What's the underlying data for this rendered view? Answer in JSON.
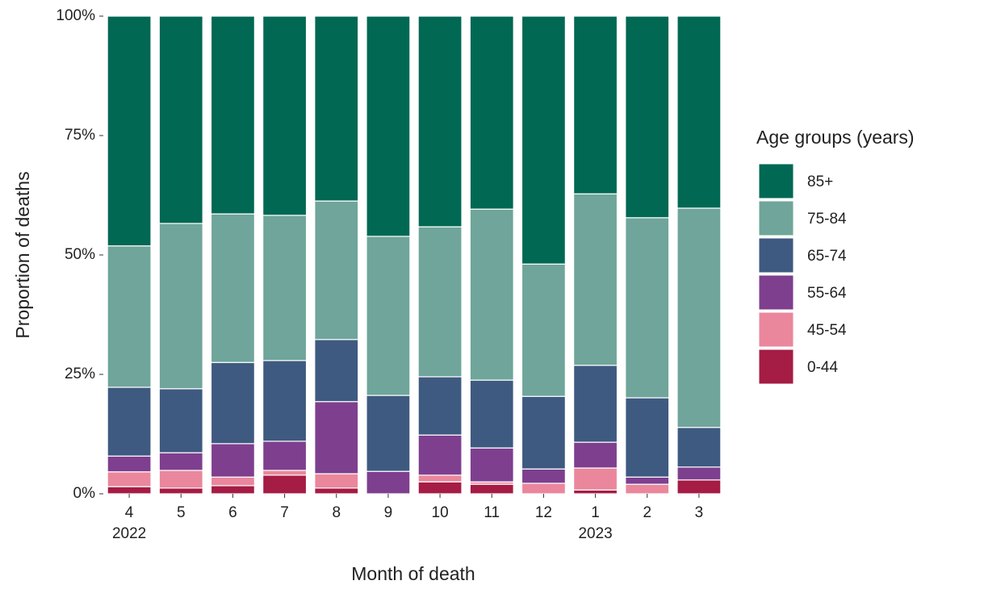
{
  "chart_data": {
    "type": "stacked_bar",
    "x_label": "Month of death",
    "y_label": "Proportion of deaths",
    "legend_title": "Age groups (years)",
    "legend_position": "right",
    "categories": [
      "4",
      "5",
      "6",
      "7",
      "8",
      "9",
      "10",
      "11",
      "12",
      "1",
      "2",
      "3"
    ],
    "years": [
      "2022",
      null,
      null,
      null,
      null,
      null,
      null,
      null,
      null,
      "2023",
      null,
      null
    ],
    "ylim": [
      0,
      100
    ],
    "yticks": [
      {
        "value": 0,
        "label": "0%"
      },
      {
        "value": 25,
        "label": "25%"
      },
      {
        "value": 50,
        "label": "50%"
      },
      {
        "value": 75,
        "label": "75%"
      },
      {
        "value": 100,
        "label": "100%"
      }
    ],
    "series": [
      {
        "name": "0-44",
        "color": "#a51c45",
        "values": [
          1.5,
          1.2,
          1.7,
          3.9,
          1.2,
          0,
          2.5,
          2.0,
          0,
          0.8,
          0,
          2.9
        ]
      },
      {
        "name": "45-54",
        "color": "#ea879c",
        "values": [
          3.1,
          3.7,
          1.8,
          1.0,
          3.0,
          0,
          1.4,
          0.5,
          2.2,
          4.6,
          2.0,
          0
        ]
      },
      {
        "name": "55-64",
        "color": "#7e3f8f",
        "values": [
          3.3,
          3.7,
          7.0,
          6.1,
          15.1,
          4.7,
          8.4,
          7.1,
          3.0,
          5.4,
          1.5,
          2.7
        ]
      },
      {
        "name": "65-74",
        "color": "#3e5a80",
        "values": [
          14.4,
          13.4,
          17.0,
          16.9,
          13.0,
          15.9,
          12.2,
          14.2,
          15.2,
          16.1,
          16.6,
          8.3
        ]
      },
      {
        "name": "75-84",
        "color": "#6fa59a",
        "values": [
          29.6,
          34.6,
          31.1,
          30.4,
          29.0,
          33.3,
          31.4,
          35.8,
          27.7,
          35.9,
          37.7,
          45.9
        ]
      },
      {
        "name": "85+",
        "color": "#006853",
        "values": [
          48.1,
          43.4,
          41.4,
          41.7,
          38.7,
          46.1,
          44.1,
          40.4,
          51.9,
          37.2,
          42.2,
          40.2
        ]
      }
    ]
  }
}
